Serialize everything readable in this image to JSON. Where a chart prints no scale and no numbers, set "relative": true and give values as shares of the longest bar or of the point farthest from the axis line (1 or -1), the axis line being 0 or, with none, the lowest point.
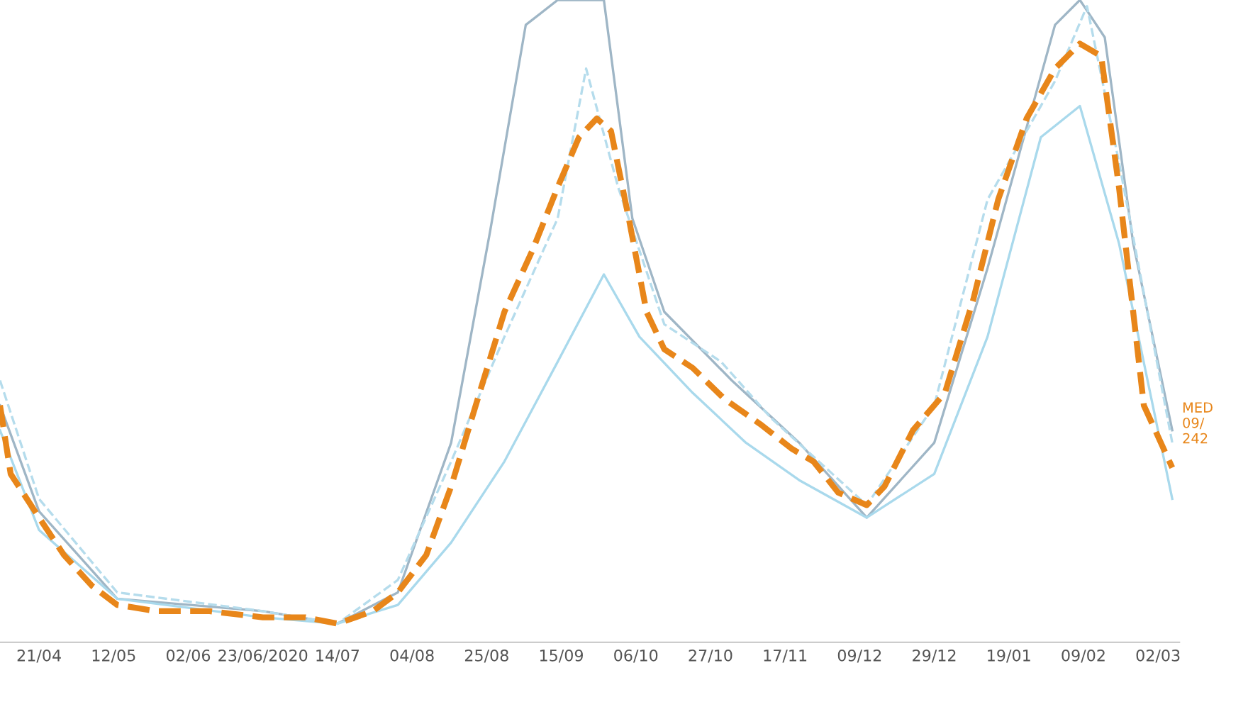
{
  "chart_data": {
    "type": "line",
    "relative": true,
    "tick_labels": "x",
    "xlim": [
      "2020-04-10",
      "2021-03-08"
    ],
    "xticks": [
      {
        "value": "2020-04-21",
        "label": "21/04"
      },
      {
        "value": "2020-05-12",
        "label": "12/05"
      },
      {
        "value": "2020-06-02",
        "label": "02/06"
      },
      {
        "value": "2020-06-23",
        "label": "23/06/2020"
      },
      {
        "value": "2020-07-14",
        "label": "14/07"
      },
      {
        "value": "2020-08-04",
        "label": "04/08"
      },
      {
        "value": "2020-08-25",
        "label": "25/08"
      },
      {
        "value": "2020-09-15",
        "label": "15/09"
      },
      {
        "value": "2020-10-06",
        "label": "06/10"
      },
      {
        "value": "2020-10-27",
        "label": "27/10"
      },
      {
        "value": "2020-11-17",
        "label": "17/11"
      },
      {
        "value": "2020-12-08",
        "label": "09/12"
      },
      {
        "value": "2020-12-29",
        "label": "29/12"
      },
      {
        "value": "2021-01-19",
        "label": "19/01"
      },
      {
        "value": "2021-02-09",
        "label": "09/02"
      },
      {
        "value": "2021-03-02",
        "label": "02/03"
      }
    ],
    "series": [
      {
        "color": "#9fb6c6",
        "line_style": "solid",
        "x": [
          "2020-04-10",
          "2020-04-21",
          "2020-05-13",
          "2020-06-23",
          "2020-07-14",
          "2020-07-31",
          "2020-08-15",
          "2020-08-26",
          "2020-09-05",
          "2020-09-14",
          "2020-09-27",
          "2020-10-05",
          "2020-10-14",
          "2020-11-02",
          "2020-11-21",
          "2020-12-10",
          "2020-12-29",
          "2021-01-13",
          "2021-02-01",
          "2021-02-08",
          "2021-02-15",
          "2021-02-23",
          "2021-03-06"
        ],
        "values": [
          0.35,
          0.18,
          0.04,
          0.02,
          0,
          0.05,
          0.29,
          0.63,
          0.96,
          1,
          1,
          0.65,
          0.5,
          0.39,
          0.29,
          0.17,
          0.29,
          0.57,
          0.96,
          1,
          0.94,
          0.61,
          0.31
        ]
      },
      {
        "color": "#a9d9ec",
        "line_style": "solid",
        "x": [
          "2020-04-10",
          "2020-04-21",
          "2020-05-13",
          "2020-06-23",
          "2020-07-14",
          "2020-07-31",
          "2020-08-15",
          "2020-08-30",
          "2020-09-14",
          "2020-09-27",
          "2020-10-07",
          "2020-10-22",
          "2020-11-06",
          "2020-11-21",
          "2020-12-10",
          "2020-12-29",
          "2021-01-13",
          "2021-01-28",
          "2021-02-08",
          "2021-02-19",
          "2021-03-06"
        ],
        "values": [
          0.31,
          0.15,
          0.04,
          0.01,
          0,
          0.03,
          0.13,
          0.26,
          0.42,
          0.56,
          0.46,
          0.37,
          0.29,
          0.23,
          0.17,
          0.24,
          0.46,
          0.78,
          0.83,
          0.61,
          0.2
        ]
      },
      {
        "color": "#b5dcec",
        "line_style": "dashed",
        "x": [
          "2020-04-10",
          "2020-04-21",
          "2020-05-13",
          "2020-06-23",
          "2020-07-14",
          "2020-07-31",
          "2020-08-15",
          "2020-08-30",
          "2020-09-14",
          "2020-09-22",
          "2020-10-01",
          "2020-10-14",
          "2020-10-30",
          "2020-11-13",
          "2020-12-10",
          "2020-12-29",
          "2021-01-13",
          "2021-02-01",
          "2021-02-10",
          "2021-02-19",
          "2021-03-06"
        ],
        "values": [
          0.39,
          0.2,
          0.05,
          0.02,
          0,
          0.07,
          0.26,
          0.46,
          0.65,
          0.89,
          0.7,
          0.48,
          0.42,
          0.33,
          0.19,
          0.35,
          0.68,
          0.87,
          0.99,
          0.74,
          0.29
        ]
      },
      {
        "color": "#e8861a",
        "line_style": "dashed",
        "x": [
          "2020-04-10",
          "2020-04-13",
          "2020-04-21",
          "2020-04-28",
          "2020-05-06",
          "2020-05-13",
          "2020-05-24",
          "2020-06-08",
          "2020-06-23",
          "2020-07-05",
          "2020-07-14",
          "2020-07-24",
          "2020-07-31",
          "2020-08-08",
          "2020-08-15",
          "2020-08-23",
          "2020-08-30",
          "2020-09-07",
          "2020-09-14",
          "2020-09-20",
          "2020-09-25",
          "2020-09-29",
          "2020-10-04",
          "2020-10-09",
          "2020-10-14",
          "2020-10-22",
          "2020-10-31",
          "2020-11-10",
          "2020-11-19",
          "2020-11-25",
          "2020-12-02",
          "2020-12-10",
          "2020-12-15",
          "2020-12-23",
          "2021-01-01",
          "2021-01-09",
          "2021-01-16",
          "2021-01-24",
          "2021-02-01",
          "2021-02-08",
          "2021-02-14",
          "2021-02-19",
          "2021-02-26",
          "2021-03-06"
        ],
        "values": [
          0.35,
          0.24,
          0.17,
          0.11,
          0.06,
          0.03,
          0.02,
          0.02,
          0.01,
          0.01,
          0,
          0.02,
          0.05,
          0.11,
          0.22,
          0.37,
          0.5,
          0.6,
          0.7,
          0.78,
          0.81,
          0.79,
          0.65,
          0.5,
          0.44,
          0.41,
          0.36,
          0.32,
          0.28,
          0.26,
          0.21,
          0.19,
          0.22,
          0.31,
          0.37,
          0.52,
          0.68,
          0.81,
          0.89,
          0.93,
          0.91,
          0.7,
          0.35,
          0.25
        ]
      }
    ],
    "annotations": [
      {
        "text": "MED\n09/\n242",
        "x": "2021-03-01",
        "y": 0.32
      }
    ]
  }
}
